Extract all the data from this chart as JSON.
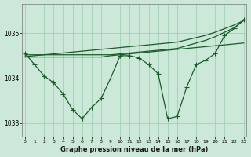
{
  "bg_color": "#cce8d8",
  "grid_color": "#99ccb0",
  "line_color": "#1a5c2a",
  "xlabel": "Graphe pression niveau de la mer (hPa)",
  "ylim": [
    1032.7,
    1035.65
  ],
  "yticks": [
    1033,
    1034,
    1035
  ],
  "xlim": [
    -0.3,
    23.3
  ],
  "xticks": [
    0,
    1,
    2,
    3,
    4,
    5,
    6,
    7,
    8,
    9,
    10,
    11,
    12,
    13,
    14,
    15,
    16,
    17,
    18,
    19,
    20,
    21,
    22,
    23
  ],
  "main_y": [
    1034.55,
    1034.3,
    1034.05,
    1033.9,
    1033.65,
    1033.3,
    1033.1,
    1033.35,
    1033.55,
    1034.0,
    1034.5,
    1034.5,
    1034.45,
    1034.3,
    1034.1,
    1033.1,
    1033.15,
    1033.8,
    1034.3,
    1034.4,
    1034.55,
    1034.95,
    1035.1,
    1035.3
  ],
  "line_top": [
    1034.52,
    1034.52,
    1034.52,
    1034.52,
    1034.52,
    1034.52,
    1034.52,
    1034.52,
    1034.52,
    1034.52,
    1034.54,
    1034.56,
    1034.58,
    1034.6,
    1034.62,
    1034.64,
    1034.66,
    1034.72,
    1034.78,
    1034.84,
    1034.92,
    1035.02,
    1035.12,
    1035.28
  ],
  "line_mid1": [
    1034.47,
    1034.47,
    1034.47,
    1034.47,
    1034.47,
    1034.47,
    1034.47,
    1034.47,
    1034.47,
    1034.5,
    1034.52,
    1034.54,
    1034.56,
    1034.58,
    1034.6,
    1034.62,
    1034.64,
    1034.66,
    1034.68,
    1034.7,
    1034.72,
    1034.74,
    1034.76,
    1034.78
  ],
  "line_diag": [
    1034.48,
    1034.5,
    1034.52,
    1034.54,
    1034.56,
    1034.58,
    1034.6,
    1034.62,
    1034.64,
    1034.66,
    1034.68,
    1034.7,
    1034.72,
    1034.74,
    1034.76,
    1034.78,
    1034.8,
    1034.85,
    1034.9,
    1034.95,
    1035.02,
    1035.1,
    1035.18,
    1035.28
  ]
}
